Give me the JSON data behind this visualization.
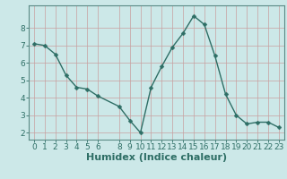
{
  "x": [
    0,
    1,
    2,
    3,
    4,
    5,
    6,
    8,
    9,
    10,
    11,
    12,
    13,
    14,
    15,
    16,
    17,
    18,
    19,
    20,
    21,
    22,
    23
  ],
  "y": [
    7.1,
    7.0,
    6.5,
    5.3,
    4.6,
    4.5,
    4.1,
    3.5,
    2.7,
    2.0,
    4.6,
    5.8,
    6.9,
    7.7,
    8.7,
    8.2,
    6.4,
    4.2,
    3.0,
    2.5,
    2.6,
    2.6,
    2.3
  ],
  "xlabel": "Humidex (Indice chaleur)",
  "xticks": [
    0,
    1,
    2,
    3,
    4,
    5,
    6,
    8,
    9,
    10,
    11,
    12,
    13,
    14,
    15,
    16,
    17,
    18,
    19,
    20,
    21,
    22,
    23
  ],
  "yticks": [
    2,
    3,
    4,
    5,
    6,
    7,
    8
  ],
  "ylim": [
    1.6,
    9.3
  ],
  "xlim": [
    -0.5,
    23.5
  ],
  "line_color": "#2e6e65",
  "marker_color": "#2e6e65",
  "bg_color": "#cce8e8",
  "grid_color": "#c8a0a0",
  "spine_color": "#5a8a85",
  "tick_label_color": "#2e6e65",
  "xlabel_color": "#2e6e65",
  "xlabel_fontsize": 8,
  "tick_fontsize": 6.5,
  "line_width": 1.0,
  "marker_size": 2.5
}
